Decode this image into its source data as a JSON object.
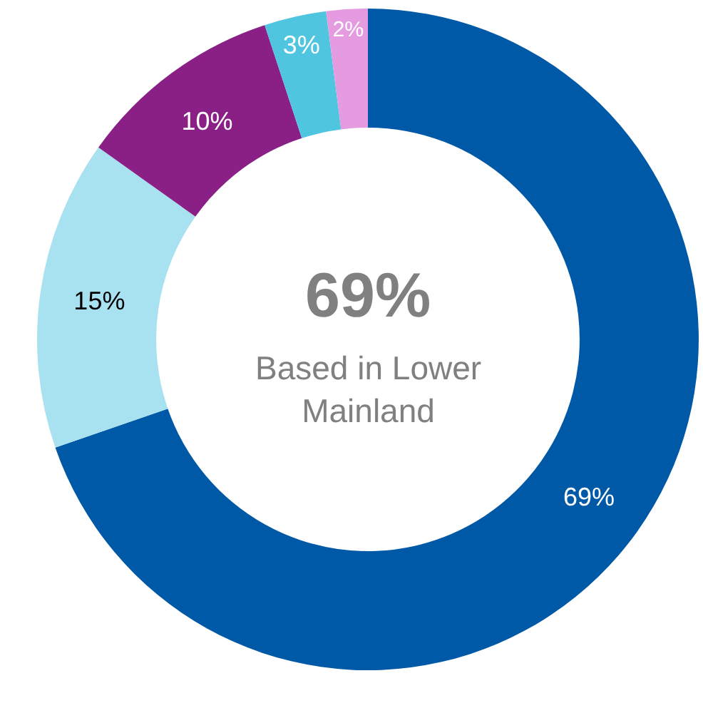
{
  "chart_data": {
    "type": "donut",
    "categories": [
      null,
      null,
      null,
      null,
      null
    ],
    "values": [
      69,
      15,
      10,
      3,
      2
    ],
    "colors": [
      "#0059a6",
      "#a8e1ef",
      "#8a1f86",
      "#4fc5e0",
      "#e59be0"
    ],
    "value_labels": [
      "69%",
      "15%",
      "10%",
      "3%",
      "2%"
    ],
    "annotations": [
      "69%",
      "Based in Lower Mainland"
    ]
  }
}
